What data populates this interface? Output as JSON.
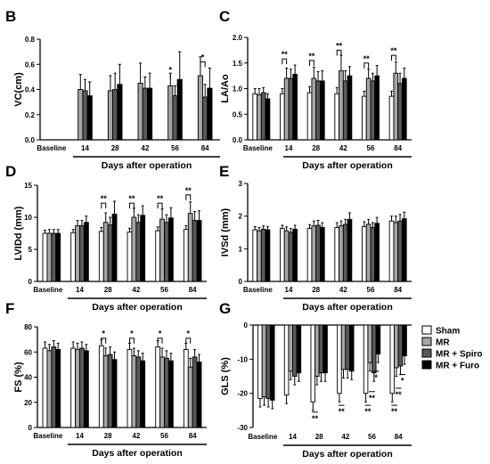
{
  "series_names": [
    "Sham",
    "MR",
    "MR + Spiro",
    "MR + Furo"
  ],
  "series_colors": [
    "#ffffff",
    "#a6a6a6",
    "#595959",
    "#000000"
  ],
  "chart_data": [
    {
      "panel": "B",
      "type": "bar",
      "ylabel": "VC(cm)",
      "xlabel": "Days after operation",
      "categories": [
        "Baseline",
        "14",
        "28",
        "42",
        "56",
        "84"
      ],
      "ylim": [
        0,
        0.8
      ],
      "yticks": [
        "0.0",
        "0.2",
        "0.4",
        "0.6",
        "0.8"
      ],
      "ytick_values": [
        0,
        0.2,
        0.4,
        0.6,
        0.8
      ],
      "group_series": [
        1,
        2,
        3
      ],
      "series": [
        {
          "values": [
            0,
            0.4,
            0.39,
            0.45,
            0.43,
            0.51
          ],
          "errors": [
            0,
            0.12,
            0.12,
            0.16,
            0.1,
            0.15
          ]
        },
        {
          "values": [
            0,
            0.39,
            0.4,
            0.41,
            0.35,
            0.34
          ],
          "errors": [
            0,
            0.09,
            0.13,
            0.09,
            0.08,
            0.1
          ]
        },
        {
          "values": [
            0,
            0.35,
            0.44,
            0.41,
            0.48,
            0.41
          ],
          "errors": [
            0,
            0.11,
            0.16,
            0.12,
            0.22,
            0.16
          ]
        }
      ],
      "annotations": [
        {
          "text": "*",
          "category": "56",
          "from": 0,
          "to": 1,
          "level": 0.52
        },
        {
          "text": "*",
          "category": "84",
          "from": 0,
          "to": 2,
          "level": 0.62
        }
      ]
    },
    {
      "panel": "C",
      "type": "bar",
      "ylabel": "LA/Ao",
      "xlabel": "Days after operation",
      "categories": [
        "Baseline",
        "14",
        "28",
        "42",
        "56",
        "84"
      ],
      "ylim": [
        0,
        2.0
      ],
      "yticks": [
        "0.0",
        "0.5",
        "1.0",
        "1.5",
        "2.0"
      ],
      "ytick_values": [
        0,
        0.5,
        1.0,
        1.5,
        2.0
      ],
      "group_series": [
        0,
        1,
        2,
        3
      ],
      "series": [
        {
          "values": [
            0.9,
            0.9,
            0.92,
            0.9,
            0.85,
            0.85
          ],
          "errors": [
            0.1,
            0.1,
            0.12,
            0.12,
            0.1,
            0.1
          ]
        },
        {
          "values": [
            0.88,
            1.2,
            1.2,
            1.35,
            1.2,
            1.3
          ],
          "errors": [
            0.12,
            0.2,
            0.22,
            0.3,
            0.18,
            0.22
          ]
        },
        {
          "values": [
            0.92,
            1.2,
            1.15,
            1.15,
            1.15,
            1.1
          ],
          "errors": [
            0.1,
            0.18,
            0.18,
            0.2,
            0.15,
            0.2
          ]
        },
        {
          "values": [
            0.8,
            1.28,
            1.15,
            1.25,
            1.25,
            1.2
          ],
          "errors": [
            0.1,
            0.18,
            0.2,
            0.18,
            0.2,
            0.2
          ]
        }
      ],
      "annotations": [
        {
          "text": "**",
          "category": "14",
          "from": 0,
          "to": 1,
          "level": 1.58
        },
        {
          "text": "**",
          "category": "28",
          "from": 0,
          "to": 1,
          "level": 1.55
        },
        {
          "text": "**",
          "category": "42",
          "from": 0,
          "to": 1,
          "level": 1.75
        },
        {
          "text": "**",
          "category": "56",
          "from": 0,
          "to": 1,
          "level": 1.5
        },
        {
          "text": "**",
          "category": "84",
          "from": 0,
          "to": 1,
          "level": 1.65
        }
      ]
    },
    {
      "panel": "D",
      "type": "bar",
      "ylabel": "LVIDd (mm)",
      "xlabel": "Days after operation",
      "categories": [
        "Baseline",
        "14",
        "28",
        "42",
        "56",
        "84"
      ],
      "ylim": [
        0,
        15
      ],
      "yticks": [
        "0",
        "5",
        "10",
        "15"
      ],
      "ytick_values": [
        0,
        5,
        10,
        15
      ],
      "group_series": [
        0,
        1,
        2,
        3
      ],
      "series": [
        {
          "values": [
            7.5,
            7.6,
            7.8,
            7.7,
            7.9,
            8.1
          ],
          "errors": [
            0.5,
            0.5,
            0.6,
            0.6,
            0.6,
            0.6
          ]
        },
        {
          "values": [
            7.5,
            8.7,
            9.2,
            10.0,
            9.7,
            10.6
          ],
          "errors": [
            0.6,
            0.8,
            1.5,
            1.4,
            1.6,
            1.8
          ]
        },
        {
          "values": [
            7.5,
            8.7,
            8.8,
            9.2,
            9.2,
            9.5
          ],
          "errors": [
            0.6,
            0.8,
            1.2,
            1.2,
            1.2,
            1.4
          ]
        },
        {
          "values": [
            7.5,
            9.2,
            10.5,
            10.3,
            9.9,
            9.5
          ],
          "errors": [
            0.6,
            1.0,
            2.0,
            1.5,
            1.6,
            1.5
          ]
        }
      ],
      "annotations": [
        {
          "text": "**",
          "category": "28",
          "from": 0,
          "to": 1,
          "level": 12.2
        },
        {
          "text": "**",
          "category": "42",
          "from": 0,
          "to": 1,
          "level": 12.2
        },
        {
          "text": "**",
          "category": "56",
          "from": 0,
          "to": 1,
          "level": 12.2
        },
        {
          "text": "**",
          "category": "84",
          "from": 0,
          "to": 1,
          "level": 13.5
        }
      ]
    },
    {
      "panel": "E",
      "type": "bar",
      "ylabel": "IVSd (mm)",
      "xlabel": "Days after operation",
      "categories": [
        "Baseline",
        "14",
        "28",
        "42",
        "56",
        "84"
      ],
      "ylim": [
        0,
        3
      ],
      "yticks": [
        "0",
        "1",
        "2",
        "3"
      ],
      "ytick_values": [
        0,
        1,
        2,
        3
      ],
      "group_series": [
        0,
        1,
        2,
        3
      ],
      "series": [
        {
          "values": [
            1.58,
            1.62,
            1.62,
            1.65,
            1.68,
            1.85
          ],
          "errors": [
            0.1,
            0.1,
            0.12,
            0.15,
            0.15,
            0.15
          ]
        },
        {
          "values": [
            1.55,
            1.55,
            1.7,
            1.7,
            1.75,
            1.8
          ],
          "errors": [
            0.1,
            0.12,
            0.15,
            0.15,
            0.15,
            0.2
          ]
        },
        {
          "values": [
            1.6,
            1.5,
            1.72,
            1.75,
            1.65,
            1.85
          ],
          "errors": [
            0.1,
            0.12,
            0.15,
            0.15,
            0.15,
            0.2
          ]
        },
        {
          "values": [
            1.58,
            1.6,
            1.65,
            1.9,
            1.78,
            1.92
          ],
          "errors": [
            0.1,
            0.12,
            0.15,
            0.2,
            0.18,
            0.2
          ]
        }
      ],
      "annotations": []
    },
    {
      "panel": "F",
      "type": "bar",
      "ylabel": "FS (%)",
      "xlabel": "Days after operation",
      "categories": [
        "Baseline",
        "14",
        "28",
        "42",
        "56",
        "84"
      ],
      "ylim": [
        0,
        80
      ],
      "yticks": [
        "0",
        "20",
        "40",
        "60",
        "80"
      ],
      "ytick_values": [
        0,
        20,
        40,
        60,
        80
      ],
      "group_series": [
        0,
        1,
        2,
        3
      ],
      "series": [
        {
          "values": [
            63,
            63,
            65,
            62,
            64,
            62
          ],
          "errors": [
            5,
            5,
            5,
            5,
            5,
            5
          ]
        },
        {
          "values": [
            61,
            62,
            57,
            57,
            56,
            48
          ],
          "errors": [
            5,
            5,
            6,
            6,
            7,
            7
          ]
        },
        {
          "values": [
            64,
            63,
            58,
            56,
            55,
            56
          ],
          "errors": [
            5,
            5,
            6,
            5,
            6,
            6
          ]
        },
        {
          "values": [
            62,
            61,
            54,
            53,
            53,
            52
          ],
          "errors": [
            5,
            5,
            6,
            6,
            6,
            6
          ]
        }
      ],
      "annotations": [
        {
          "text": "*",
          "category": "28",
          "from": 0,
          "to": 1,
          "level": 71
        },
        {
          "text": "*",
          "category": "42",
          "from": 0,
          "to": 1,
          "level": 71
        },
        {
          "text": "*",
          "category": "56",
          "from": 0,
          "to": 1,
          "level": 71
        },
        {
          "text": "*",
          "category": "84",
          "from": 0,
          "to": 1,
          "level": 71
        }
      ]
    },
    {
      "panel": "G",
      "type": "bar",
      "ylabel": "GLS (%)",
      "xlabel": "Days after operation",
      "categories": [
        "Baseline",
        "14",
        "28",
        "42",
        "56",
        "84"
      ],
      "ylim": [
        -30,
        0
      ],
      "yticks": [
        "0",
        "-10",
        "-20",
        "-30"
      ],
      "ytick_values": [
        0,
        -10,
        -20,
        -30
      ],
      "group_series": [
        0,
        1,
        2,
        3
      ],
      "series": [
        {
          "values": [
            -21.5,
            -20.5,
            -22.5,
            -20.0,
            -20.0,
            -20.0
          ],
          "errors": [
            2.5,
            2.5,
            2.5,
            2.5,
            2.5,
            2.5
          ]
        },
        {
          "values": [
            -21.0,
            -13.5,
            -15.0,
            -13.0,
            -11.0,
            -12.5
          ],
          "errors": [
            2.5,
            2.5,
            2.5,
            2.5,
            2.5,
            2.5
          ]
        },
        {
          "values": [
            -21.5,
            -15.0,
            -14.0,
            -13.0,
            -14.0,
            -12.0
          ],
          "errors": [
            2.5,
            2.5,
            2.5,
            2.5,
            2.5,
            2.5
          ]
        },
        {
          "values": [
            -22.0,
            -14.0,
            -14.0,
            -13.5,
            -8.5,
            -9.0
          ],
          "errors": [
            2.5,
            2.5,
            2.5,
            2.5,
            2.5,
            2.5
          ]
        }
      ],
      "annotations": [
        {
          "text": "**",
          "category": "28",
          "from": 0,
          "to": 1,
          "level": -25.5,
          "below": true
        },
        {
          "text": "**",
          "category": "42",
          "from": 0,
          "to": 1,
          "level": -23.5,
          "below": true
        },
        {
          "text": "**",
          "category": "56",
          "from": 0,
          "to": 1,
          "level": -23.5,
          "below": true
        },
        {
          "text": "**",
          "category": "56",
          "from": 1,
          "to": 2,
          "level": -19.5,
          "below": true
        },
        {
          "text": "*",
          "category": "56",
          "from": 2,
          "to": 3,
          "level": -13.5,
          "below": true
        },
        {
          "text": "**",
          "category": "84",
          "from": 0,
          "to": 1,
          "level": -23.5,
          "below": true
        },
        {
          "text": "**",
          "category": "84",
          "from": 1,
          "to": 2,
          "level": -18.5,
          "below": true
        },
        {
          "text": "*",
          "category": "84",
          "from": 2,
          "to": 3,
          "level": -14.5,
          "below": true
        }
      ]
    }
  ]
}
